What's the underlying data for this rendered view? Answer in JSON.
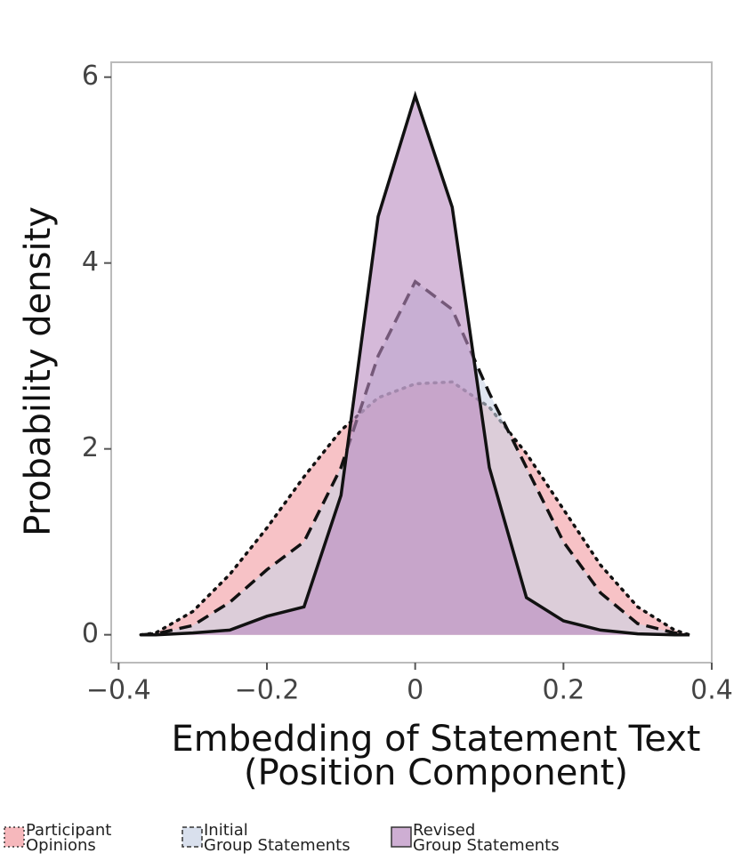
{
  "chart_data": {
    "type": "density",
    "x_label": "Embedding of Statement Text\n(Position Component)",
    "y_label": "Probability density",
    "x": [
      -0.37,
      -0.35,
      -0.3,
      -0.25,
      -0.2,
      -0.15,
      -0.1,
      -0.05,
      0,
      0.05,
      0.1,
      0.15,
      0.2,
      0.25,
      0.3,
      0.35,
      0.37
    ],
    "series": [
      {
        "name": "Participant Opinions",
        "color": "#f29aa0",
        "line_style": "dotted",
        "values": [
          0,
          0.02,
          0.25,
          0.65,
          1.15,
          1.7,
          2.2,
          2.55,
          2.7,
          2.72,
          2.45,
          1.95,
          1.35,
          0.75,
          0.3,
          0.05,
          0
        ]
      },
      {
        "name": "Initial Group Statements",
        "color": "#c9d3e6",
        "line_style": "dashed",
        "values": [
          0,
          0.01,
          0.1,
          0.35,
          0.7,
          1.0,
          1.8,
          3.0,
          3.8,
          3.5,
          2.6,
          1.8,
          1.0,
          0.45,
          0.12,
          0.02,
          0
        ]
      },
      {
        "name": "Revised Group Statements",
        "color": "#b98bc0",
        "line_style": "solid",
        "values": [
          0,
          0,
          0.02,
          0.05,
          0.2,
          0.3,
          1.5,
          4.5,
          5.8,
          4.6,
          1.8,
          0.4,
          0.15,
          0.05,
          0.01,
          0,
          0
        ]
      }
    ],
    "xlim": [
      -0.41,
      0.4
    ],
    "ylim": [
      -0.3,
      6.16
    ],
    "xticks": [
      {
        "value": -0.4,
        "label": "−0.4"
      },
      {
        "value": -0.2,
        "label": "−0.2"
      },
      0,
      0.2,
      0.4
    ],
    "yticks": [
      0,
      2,
      4,
      6
    ],
    "legend": "bottom"
  }
}
